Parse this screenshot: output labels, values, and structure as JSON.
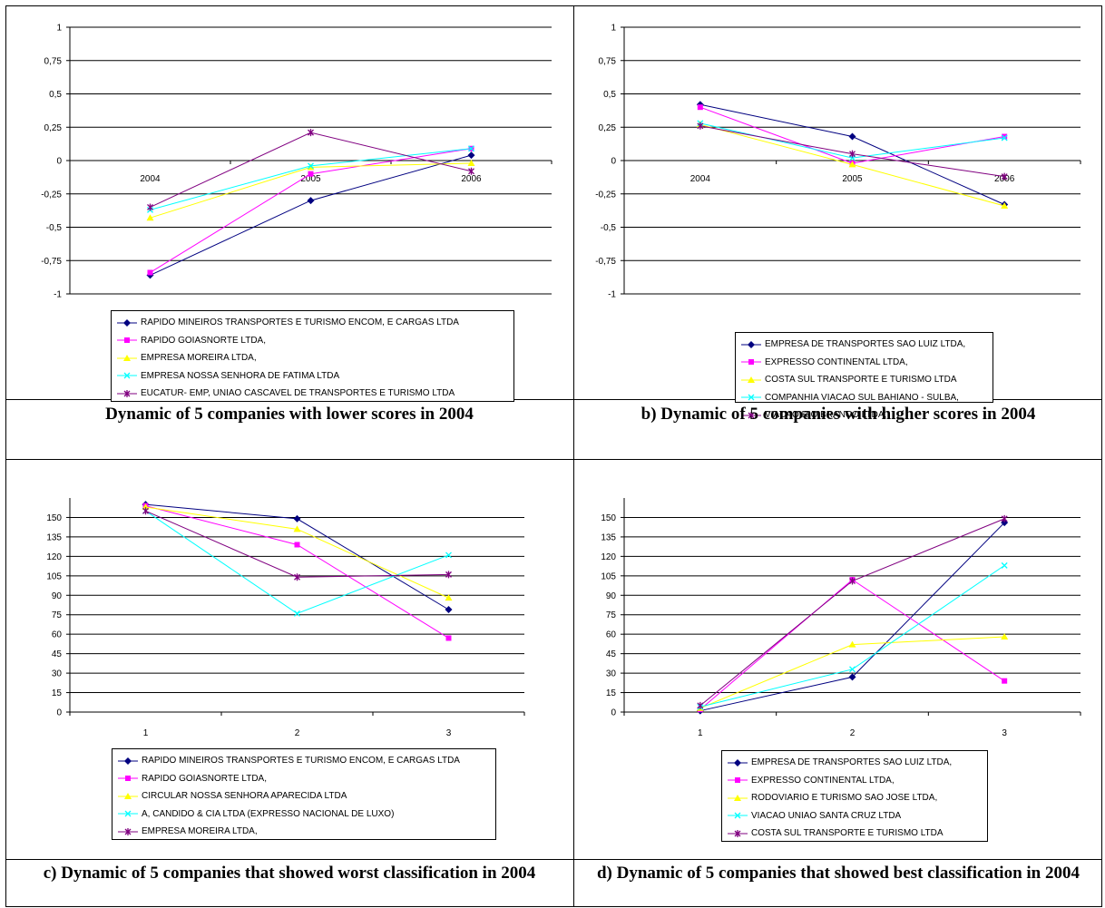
{
  "panels": [
    {
      "caption": "Dynamic of 5 companies with lower scores in 2004",
      "chart_data": {
        "type": "line",
        "title": "",
        "xlabel": "",
        "ylabel": "",
        "categories": [
          "2004",
          "2005",
          "2006"
        ],
        "ylim": [
          -1,
          1
        ],
        "yticks": [
          1,
          0.75,
          0.5,
          0.25,
          0,
          -0.25,
          -0.5,
          -0.75,
          -1
        ],
        "ytick_labels": [
          "1",
          "0,75",
          "0,5",
          "0,25",
          "0",
          "-0,25",
          "-0,5",
          "-0,75",
          "-1"
        ],
        "grid": true,
        "category_labels_at_zero": true,
        "legend_position": "bottom",
        "series": [
          {
            "name": "RAPIDO MINEIROS TRANSPORTES E TURISMO ENCOM, E CARGAS LTDA",
            "color": "#000080",
            "marker": "diamond",
            "values": [
              -0.86,
              -0.3,
              0.04
            ]
          },
          {
            "name": "RAPIDO GOIASNORTE LTDA,",
            "color": "#ff00ff",
            "marker": "square",
            "values": [
              -0.84,
              -0.1,
              0.09
            ]
          },
          {
            "name": "EMPRESA MOREIRA LTDA,",
            "color": "#ffff00",
            "marker": "triangle",
            "values": [
              -0.43,
              -0.05,
              -0.02
            ]
          },
          {
            "name": "EMPRESA NOSSA SENHORA DE FATIMA LTDA",
            "color": "#00ffff",
            "marker": "x",
            "values": [
              -0.37,
              -0.04,
              0.09
            ]
          },
          {
            "name": "EUCATUR- EMP, UNIAO CASCAVEL DE TRANSPORTES E TURISMO LTDA",
            "color": "#800080",
            "marker": "star",
            "values": [
              -0.35,
              0.21,
              -0.08
            ]
          }
        ]
      }
    },
    {
      "caption": "b) Dynamic of 5 companies with higher scores in 2004",
      "chart_data": {
        "type": "line",
        "title": "",
        "xlabel": "",
        "ylabel": "",
        "categories": [
          "2004",
          "2005",
          "2006"
        ],
        "ylim": [
          -1,
          1
        ],
        "yticks": [
          1,
          0.75,
          0.5,
          0.25,
          0,
          -0.25,
          -0.5,
          -0.75,
          -1
        ],
        "ytick_labels": [
          "1",
          "0,75",
          "0,5",
          "0,25",
          "0",
          "-0,25",
          "-0,5",
          "-0,75",
          "-1"
        ],
        "grid": true,
        "category_labels_at_zero": true,
        "legend_position": "bottom",
        "series": [
          {
            "name": "EMPRESA DE TRANSPORTES SAO LUIZ LTDA,",
            "color": "#000080",
            "marker": "diamond",
            "values": [
              0.42,
              0.18,
              -0.33
            ]
          },
          {
            "name": "EXPRESSO CONTINENTAL LTDA,",
            "color": "#ff00ff",
            "marker": "square",
            "values": [
              0.4,
              -0.02,
              0.18
            ]
          },
          {
            "name": "COSTA SUL TRANSPORTE E TURISMO LTDA",
            "color": "#ffff00",
            "marker": "triangle",
            "values": [
              0.27,
              -0.03,
              -0.34
            ]
          },
          {
            "name": "COMPANHIA VIACAO SUL BAHIANO - SULBA,",
            "color": "#00ffff",
            "marker": "x",
            "values": [
              0.28,
              0.02,
              0.17
            ]
          },
          {
            "name": "VIACAO RIO BRANCO LTDA,",
            "color": "#800080",
            "marker": "star",
            "values": [
              0.26,
              0.05,
              -0.12
            ]
          }
        ]
      }
    },
    {
      "caption": "c) Dynamic of 5 companies that showed worst classification in 2004",
      "chart_data": {
        "type": "line",
        "title": "",
        "xlabel": "",
        "ylabel": "",
        "categories": [
          "1",
          "2",
          "3"
        ],
        "ylim": [
          0,
          165
        ],
        "yticks": [
          150,
          135,
          120,
          105,
          90,
          75,
          60,
          45,
          30,
          15,
          0
        ],
        "ytick_labels": [
          "150",
          "135",
          "120",
          "105",
          "90",
          "75",
          "60",
          "45",
          "30",
          "15",
          "0"
        ],
        "grid": true,
        "category_labels_at_zero": false,
        "legend_position": "bottom",
        "series": [
          {
            "name": "RAPIDO MINEIROS TRANSPORTES E TURISMO ENCOM, E CARGAS LTDA",
            "color": "#000080",
            "marker": "diamond",
            "values": [
              160,
              149,
              79
            ]
          },
          {
            "name": "RAPIDO GOIASNORTE LTDA,",
            "color": "#ff00ff",
            "marker": "square",
            "values": [
              159,
              129,
              57
            ]
          },
          {
            "name": "CIRCULAR NOSSA SENHORA APARECIDA LTDA",
            "color": "#ffff00",
            "marker": "triangle",
            "values": [
              158,
              141,
              88
            ]
          },
          {
            "name": "A, CANDIDO & CIA LTDA (EXPRESSO NACIONAL DE LUXO)",
            "color": "#00ffff",
            "marker": "x",
            "values": [
              155,
              76,
              121
            ]
          },
          {
            "name": "EMPRESA MOREIRA LTDA,",
            "color": "#800080",
            "marker": "star",
            "values": [
              155,
              104,
              106
            ]
          }
        ]
      }
    },
    {
      "caption": "d) Dynamic of 5 companies that showed best classification in 2004",
      "chart_data": {
        "type": "line",
        "title": "",
        "xlabel": "",
        "ylabel": "",
        "categories": [
          "1",
          "2",
          "3"
        ],
        "ylim": [
          0,
          165
        ],
        "yticks": [
          150,
          135,
          120,
          105,
          90,
          75,
          60,
          45,
          30,
          15,
          0
        ],
        "ytick_labels": [
          "150",
          "135",
          "120",
          "105",
          "90",
          "75",
          "60",
          "45",
          "30",
          "15",
          "0"
        ],
        "grid": true,
        "category_labels_at_zero": false,
        "legend_position": "bottom",
        "series": [
          {
            "name": "EMPRESA DE TRANSPORTES SAO LUIZ LTDA,",
            "color": "#000080",
            "marker": "diamond",
            "values": [
              1,
              27,
              146
            ]
          },
          {
            "name": "EXPRESSO CONTINENTAL LTDA,",
            "color": "#ff00ff",
            "marker": "square",
            "values": [
              2,
              102,
              24
            ]
          },
          {
            "name": "RODOVIARIO E TURISMO SAO JOSE LTDA,",
            "color": "#ffff00",
            "marker": "triangle",
            "values": [
              3,
              52,
              58
            ]
          },
          {
            "name": "VIACAO UNIAO SANTA CRUZ LTDA",
            "color": "#00ffff",
            "marker": "x",
            "values": [
              4,
              33,
              113
            ]
          },
          {
            "name": "COSTA SUL TRANSPORTE E TURISMO LTDA",
            "color": "#800080",
            "marker": "star",
            "values": [
              5,
              101,
              149
            ]
          }
        ]
      }
    }
  ]
}
